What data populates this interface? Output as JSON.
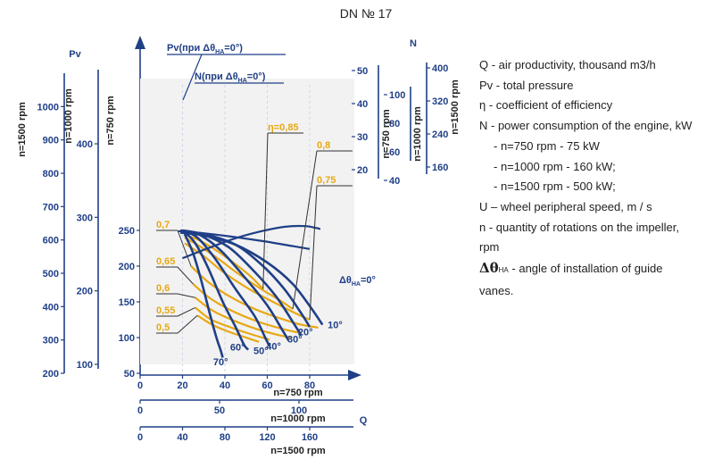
{
  "title": "DN № 17",
  "chart_data": {
    "type": "line",
    "title": "DN № 17",
    "colors": {
      "axis": "#1f3f87",
      "pressure_curves": "#1f3f87",
      "efficiency_curves": "#e8a814",
      "text": "#222222"
    },
    "pressure_axes": [
      {
        "label": "n=1500 rpm",
        "ticks": [
          200,
          300,
          400,
          500,
          600,
          700,
          800,
          900,
          1000
        ]
      },
      {
        "label": "n=1000 rpm",
        "ticks": [
          100,
          200,
          300,
          400
        ]
      },
      {
        "label": "n=750 rpm",
        "ticks": [
          50,
          100,
          150,
          200,
          250
        ]
      }
    ],
    "pressure_axis_name": "Pv",
    "power_axes": [
      {
        "label": "n=750 rpm",
        "ticks": [
          20,
          30,
          40,
          50
        ]
      },
      {
        "label": "n=1000 rpm",
        "ticks": [
          40,
          60,
          80,
          100
        ]
      },
      {
        "label": "n=1500 rpm",
        "ticks": [
          160,
          240,
          320,
          400
        ]
      }
    ],
    "power_axis_name": "N",
    "flow_axes": [
      {
        "label": "n=750 rpm",
        "ticks": [
          0,
          20,
          40,
          60,
          80
        ]
      },
      {
        "label": "n=1000 rpm",
        "ticks": [
          0,
          50,
          100
        ]
      },
      {
        "label": "n=1500 rpm",
        "ticks": [
          0,
          40,
          80,
          120,
          160
        ]
      }
    ],
    "flow_axis_name": "Q",
    "xlabel": "Q",
    "ylabel": "Pv",
    "xlim": [
      0,
      95
    ],
    "ylim": [
      50,
      260
    ],
    "pressure_curves_n750": [
      {
        "name": "10°",
        "x": [
          19,
          30,
          45,
          60,
          72,
          81,
          86
        ],
        "y": [
          247,
          243,
          230,
          205,
          175,
          140,
          118
        ]
      },
      {
        "name": "20°",
        "x": [
          19,
          30,
          45,
          58,
          68,
          76,
          80
        ],
        "y": [
          249,
          245,
          230,
          200,
          168,
          134,
          115
        ]
      },
      {
        "name": "30°",
        "x": [
          19,
          29,
          42,
          54,
          64,
          72,
          76
        ],
        "y": [
          250,
          245,
          226,
          192,
          158,
          122,
          103
        ]
      },
      {
        "name": "40°",
        "x": [
          20,
          28,
          38,
          50,
          60,
          67,
          70
        ],
        "y": [
          250,
          244,
          222,
          182,
          145,
          111,
          96
        ]
      },
      {
        "name": "50°",
        "x": [
          20,
          27,
          35,
          45,
          54,
          59,
          61
        ],
        "y": [
          250,
          240,
          212,
          168,
          130,
          100,
          88
        ]
      },
      {
        "name": "60°",
        "x": [
          21,
          26,
          32,
          39,
          45,
          49,
          51
        ],
        "y": [
          248,
          232,
          198,
          150,
          115,
          90,
          83
        ]
      },
      {
        "name": "70°",
        "x": [
          21,
          25,
          29,
          33,
          36,
          38,
          39
        ],
        "y": [
          245,
          218,
          178,
          132,
          100,
          82,
          72
        ]
      }
    ],
    "angle_label_positions": {
      "10°": [
        92,
        118
      ],
      "20°": [
        78,
        108
      ],
      "30°": [
        73,
        98
      ],
      "40°": [
        63,
        88
      ],
      "50°": [
        57,
        82
      ],
      "60°": [
        46,
        87
      ],
      "70°": [
        38,
        66
      ]
    },
    "efficiency_curves_n750": [
      {
        "name": "η=0,85",
        "x": [
          21,
          28,
          36,
          44,
          52,
          58
        ],
        "y": [
          244,
          236,
          222,
          205,
          186,
          168
        ]
      },
      {
        "name": "0,8",
        "x": [
          21,
          28,
          37,
          46,
          56,
          66,
          72
        ],
        "y": [
          240,
          228,
          210,
          190,
          170,
          152,
          140
        ]
      },
      {
        "name": "0,75",
        "x": [
          21,
          30,
          40,
          52,
          64,
          74,
          80
        ],
        "y": [
          232,
          214,
          190,
          167,
          148,
          133,
          125
        ]
      },
      {
        "name": "0,7",
        "x": [
          24,
          32,
          42,
          54,
          66,
          76,
          84
        ],
        "y": [
          200,
          178,
          158,
          140,
          127,
          118,
          114
        ]
      },
      {
        "name": "0,65",
        "x": [
          25,
          33,
          43,
          55,
          66,
          76
        ],
        "y": [
          175,
          155,
          138,
          123,
          113,
          106
        ]
      },
      {
        "name": "0,6",
        "x": [
          26,
          34,
          44,
          55,
          66,
          71
        ],
        "y": [
          156,
          138,
          124,
          112,
          103,
          100
        ]
      },
      {
        "name": "0,55",
        "x": [
          26,
          33,
          42,
          52,
          61
        ],
        "y": [
          142,
          126,
          115,
          105,
          97
        ]
      },
      {
        "name": "0,5",
        "x": [
          27,
          34,
          42,
          50,
          56
        ],
        "y": [
          131,
          118,
          108,
          100,
          94
        ]
      }
    ],
    "power_curves_n750": [
      {
        "name": "Pv(при Δθ_НА=0°)",
        "x": [
          18,
          30,
          44,
          58,
          72,
          80
        ],
        "y": [
          249,
          246,
          241,
          235,
          228,
          224
        ]
      },
      {
        "name": "N(при Δθ_НА=0°)",
        "x": [
          20,
          32,
          44,
          56,
          68,
          78,
          85
        ],
        "y": [
          211,
          225,
          238,
          248,
          255,
          256,
          252
        ]
      }
    ],
    "annotations": [
      "Pv(при Δθ",
      "НА",
      "=0°)",
      "N(при Δθ",
      "НА",
      "=0°)",
      "Δθ",
      "НА",
      "=0°"
    ]
  },
  "legend": [
    {
      "text": "Q - air productivity, thousand m3/h"
    },
    {
      "text": "Pv - total pressure"
    },
    {
      "text": "η - coefficient of efficiency"
    },
    {
      "text": "N - power consumption of the engine, kW"
    },
    {
      "text": "- n=750 rpm - 75 kW"
    },
    {
      "text": "- n=1000 rpm - 160 kW;"
    },
    {
      "text": "- n=1500 rpm - 500 kW;"
    },
    {
      "text": "U – wheel peripheral speed, m / s"
    },
    {
      "text": "n - quantity of rotations on the impeller,"
    },
    {
      "text": "rpm"
    },
    {
      "symbol": "Δθ",
      "sub": "НА",
      "text": " - angle of installation of guide"
    },
    {
      "text": "vanes."
    }
  ]
}
